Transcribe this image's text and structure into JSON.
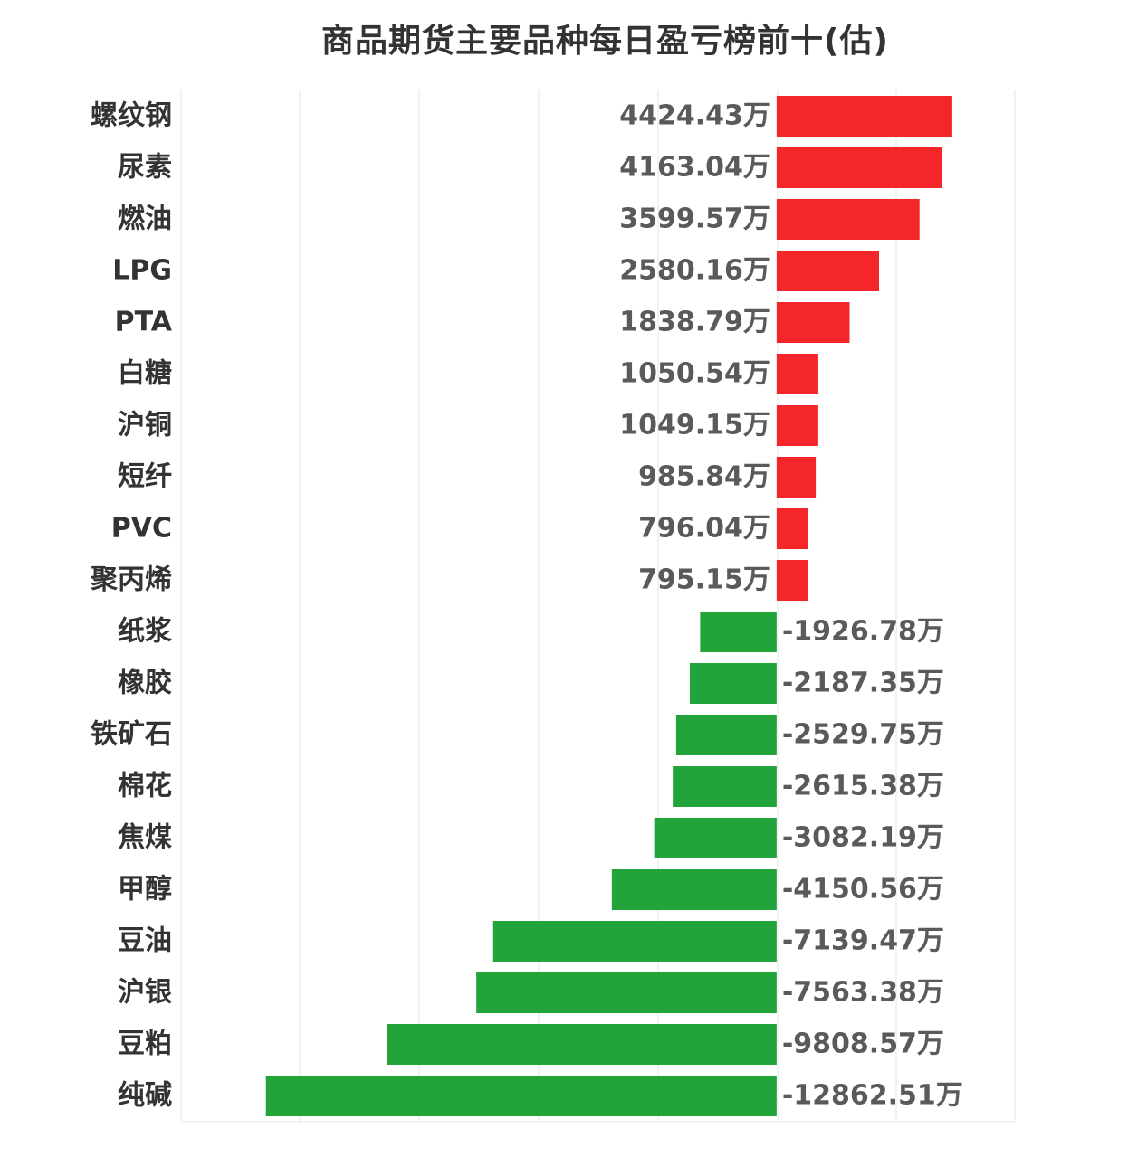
{
  "chart_data": {
    "type": "bar",
    "orientation": "horizontal",
    "title": "商品期货主要品种每日盈亏榜前十(估)",
    "unit": "万",
    "categories": [
      "螺纹钢",
      "尿素",
      "燃油",
      "LPG",
      "PTA",
      "白糖",
      "沪铜",
      "短纤",
      "PVC",
      "聚丙烯",
      "纸浆",
      "橡胶",
      "铁矿石",
      "棉花",
      "焦煤",
      "甲醇",
      "豆油",
      "沪银",
      "豆粕",
      "纯碱"
    ],
    "values": [
      4424.43,
      4163.04,
      3599.57,
      2580.16,
      1838.79,
      1050.54,
      1049.15,
      985.84,
      796.04,
      795.15,
      -1926.78,
      -2187.35,
      -2529.75,
      -2615.38,
      -3082.19,
      -4150.56,
      -7139.47,
      -7563.38,
      -9808.57,
      -12862.51
    ],
    "value_labels": [
      "4424.43万",
      "4163.04万",
      "3599.57万",
      "2580.16万",
      "1838.79万",
      "1050.54万",
      "1049.15万",
      "985.84万",
      "796.04万",
      "795.15万",
      "-1926.78万",
      "-2187.35万",
      "-2529.75万",
      "-2615.38万",
      "-3082.19万",
      "-4150.56万",
      "-7139.47万",
      "-7563.38万",
      "-9808.57万",
      "-12862.51万"
    ],
    "xlim": [
      -15000,
      6000
    ],
    "grid": true,
    "colors": {
      "positive": "#f5262a",
      "negative": "#22a43b",
      "grid": "#e4e4e4",
      "label": "#333333",
      "value": "#5a5a5a"
    }
  }
}
